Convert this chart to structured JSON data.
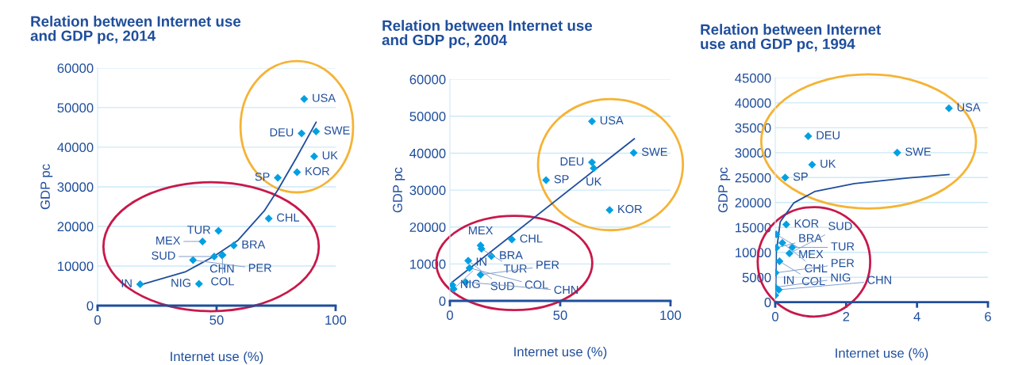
{
  "chart_data": [
    {
      "type": "scatter",
      "title": "Relation between Internet use\nand GDP pc, 2014",
      "xlabel": "Internet use (%)",
      "ylabel": "GDP pc",
      "xlim": [
        0,
        100
      ],
      "xticks": [
        0,
        50,
        100
      ],
      "ylim": [
        0,
        60000
      ],
      "yticks": [
        0,
        10000,
        20000,
        30000,
        40000,
        50000,
        60000
      ],
      "grid": "y",
      "series": [
        {
          "marker": "diamond",
          "color": "#00a0e3",
          "x": [
            86.8,
            85.7,
            91.8,
            91,
            83.8,
            75.7,
            71.9,
            50.8,
            44.1,
            57.2,
            52.3,
            49,
            52.5,
            40.1,
            42.6,
            17.9
          ],
          "values": [
            52200,
            43500,
            44000,
            37700,
            33700,
            32300,
            22000,
            18900,
            16200,
            15200,
            12700,
            12400,
            12800,
            11500,
            5500,
            5400
          ]
        },
        {
          "type": "line",
          "color": "#1f4e9c",
          "x": [
            17.9,
            36.8,
            49,
            59,
            70,
            75.7,
            83.4,
            91.8
          ],
          "values": [
            5200,
            8500,
            12500,
            16500,
            23900,
            29200,
            37200,
            46300
          ]
        }
      ],
      "annotations": [
        {
          "text": "USA",
          "x": 86.8,
          "y": 52200
        },
        {
          "text": "DEU",
          "x": 85.7,
          "y": 43500
        },
        {
          "text": "SWE",
          "x": 91.8,
          "y": 44000
        },
        {
          "text": "UK",
          "x": 91,
          "y": 37700
        },
        {
          "text": "KOR",
          "x": 83.8,
          "y": 33700
        },
        {
          "text": "SP",
          "x": 75.7,
          "y": 32300
        },
        {
          "text": "CHL",
          "x": 71.9,
          "y": 22000
        },
        {
          "text": "TUR",
          "x": 50.8,
          "y": 18900
        },
        {
          "text": "MEX",
          "x": 44.1,
          "y": 16200
        },
        {
          "text": "BRA",
          "x": 57.2,
          "y": 15200
        },
        {
          "text": "CHN",
          "x": 52.3,
          "y": 12700
        },
        {
          "text": "SUD",
          "x": 49,
          "y": 12400
        },
        {
          "text": "COL",
          "x": 52.5,
          "y": 12800
        },
        {
          "text": "PER",
          "x": 40.1,
          "y": 11500
        },
        {
          "text": "NIG",
          "x": 42.6,
          "y": 5500
        },
        {
          "text": "IN",
          "x": 17.9,
          "y": 5400
        }
      ]
    },
    {
      "type": "scatter",
      "title": "Relation between Internet use\nand GDP pc, 2004",
      "xlabel": "Internet use (%)",
      "ylabel": "GDP pc",
      "xlim": [
        0,
        100
      ],
      "xticks": [
        0,
        50,
        100
      ],
      "ylim": [
        0,
        60000
      ],
      "yticks": [
        0,
        10000,
        20000,
        30000,
        40000,
        50000,
        60000
      ],
      "grid": "y",
      "series": [
        {
          "marker": "diamond",
          "color": "#00a0e3",
          "x": [
            64.4,
            64.4,
            65.2,
            83.3,
            43.6,
            72.4,
            13.9,
            14.3,
            28.1,
            18.8,
            8.3,
            8.9,
            13.9,
            7.1,
            1.1,
            1.7
          ],
          "values": [
            48600,
            37500,
            35900,
            40100,
            32700,
            24600,
            15000,
            14100,
            16600,
            12100,
            10900,
            8900,
            7100,
            5100,
            4300,
            3200
          ]
        },
        {
          "type": "line",
          "color": "#1f4e9c",
          "x": [
            1.1,
            83.6
          ],
          "values": [
            5100,
            43900
          ]
        }
      ],
      "annotations": [
        {
          "text": "USA",
          "x": 64.4,
          "y": 48600
        },
        {
          "text": "DEU",
          "x": 64.4,
          "y": 37500
        },
        {
          "text": "UK",
          "x": 65.2,
          "y": 35900
        },
        {
          "text": "SWE",
          "x": 83.3,
          "y": 40100
        },
        {
          "text": "SP",
          "x": 43.6,
          "y": 32700
        },
        {
          "text": "KOR",
          "x": 72.4,
          "y": 24600
        },
        {
          "text": "MEX",
          "x": 13.9,
          "y": 15000
        },
        {
          "text": "TUR",
          "x": 14.3,
          "y": 14100
        },
        {
          "text": "CHL",
          "x": 28.1,
          "y": 16600
        },
        {
          "text": "BRA",
          "x": 18.8,
          "y": 12100
        },
        {
          "text": "SUD",
          "x": 8.3,
          "y": 10900
        },
        {
          "text": "COL",
          "x": 8.9,
          "y": 8900
        },
        {
          "text": "PER",
          "x": 13.9,
          "y": 7100
        },
        {
          "text": "CHN",
          "x": 7.1,
          "y": 5100
        },
        {
          "text": "NIG",
          "x": 1.1,
          "y": 4300
        },
        {
          "text": "IN",
          "x": 1.7,
          "y": 3200
        }
      ]
    },
    {
      "type": "scatter",
      "title": "Relation between Internet\nuse and GDP pc, 1994",
      "xlabel": "Internet use (%)",
      "ylabel": "GDP pc",
      "xlim": [
        0,
        6
      ],
      "xticks": [
        0,
        2,
        4,
        6
      ],
      "ylim": [
        0,
        45000
      ],
      "yticks": [
        0,
        5000,
        10000,
        15000,
        20000,
        25000,
        30000,
        35000,
        40000,
        45000
      ],
      "grid": "y",
      "series": [
        {
          "marker": "diamond",
          "color": "#00a0e3",
          "x": [
            4.9,
            0.93,
            3.44,
            1.04,
            0.28,
            0.31,
            0.03,
            0.2,
            0.03,
            0.48,
            0.4,
            0.12,
            0.01,
            0,
            0.1,
            0
          ],
          "values": [
            38900,
            33300,
            30000,
            27600,
            25000,
            15600,
            13600,
            11900,
            10900,
            11000,
            9800,
            8200,
            5900,
            3000,
            2500,
            1400
          ]
        },
        {
          "type": "line",
          "color": "#1f4e9c",
          "x": [
            0.01,
            0.03,
            0.14,
            0.52,
            1.11,
            2.23,
            3.72,
            4.9
          ],
          "values": [
            1000,
            10000,
            16100,
            19900,
            22200,
            23800,
            24900,
            25600
          ]
        }
      ],
      "annotations": [
        {
          "text": "USA",
          "x": 4.9,
          "y": 38900
        },
        {
          "text": "DEU",
          "x": 0.93,
          "y": 33300
        },
        {
          "text": "SWE",
          "x": 3.44,
          "y": 30000
        },
        {
          "text": "UK",
          "x": 1.04,
          "y": 27600
        },
        {
          "text": "SP",
          "x": 0.28,
          "y": 25000
        },
        {
          "text": "KOR",
          "x": 0.31,
          "y": 15600
        },
        {
          "text": "MEX",
          "x": 0.03,
          "y": 13600
        },
        {
          "text": "CHL",
          "x": 0.2,
          "y": 11900
        },
        {
          "text": "BRA",
          "x": 0.03,
          "y": 10900
        },
        {
          "text": "TUR",
          "x": 0.48,
          "y": 11000
        },
        {
          "text": "SUD",
          "x": 0.4,
          "y": 9800
        },
        {
          "text": "COL",
          "x": 0.12,
          "y": 8200
        },
        {
          "text": "PER",
          "x": 0.01,
          "y": 5900
        },
        {
          "text": "NIG",
          "x": 0,
          "y": 3000
        },
        {
          "text": "CHN",
          "x": 0.1,
          "y": 2500
        },
        {
          "text": "IN",
          "x": 0,
          "y": 1400
        }
      ]
    }
  ]
}
